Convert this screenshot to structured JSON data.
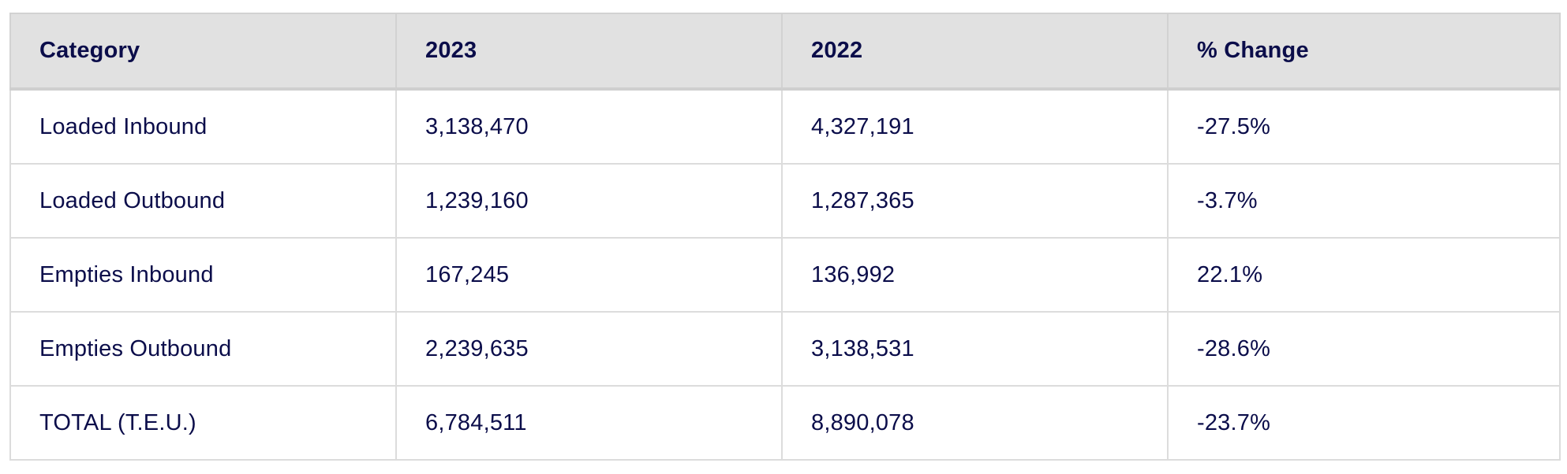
{
  "table": {
    "headers": [
      "Category",
      "2023",
      "2022",
      "% Change"
    ],
    "rows": [
      [
        "Loaded Inbound",
        "3,138,470",
        "4,327,191",
        "-27.5%"
      ],
      [
        "Loaded Outbound",
        "1,239,160",
        "1,287,365",
        "-3.7%"
      ],
      [
        "Empties Inbound",
        "167,245",
        "136,992",
        "22.1%"
      ],
      [
        "Empties Outbound",
        "2,239,635",
        "3,138,531",
        "-28.6%"
      ],
      [
        "TOTAL (T.E.U.)",
        "6,784,511",
        "8,890,078",
        "-23.7%"
      ]
    ]
  },
  "colors": {
    "text": "#0b0d4a",
    "header_bg": "#e1e1e1",
    "border": "#dcdcdc"
  }
}
